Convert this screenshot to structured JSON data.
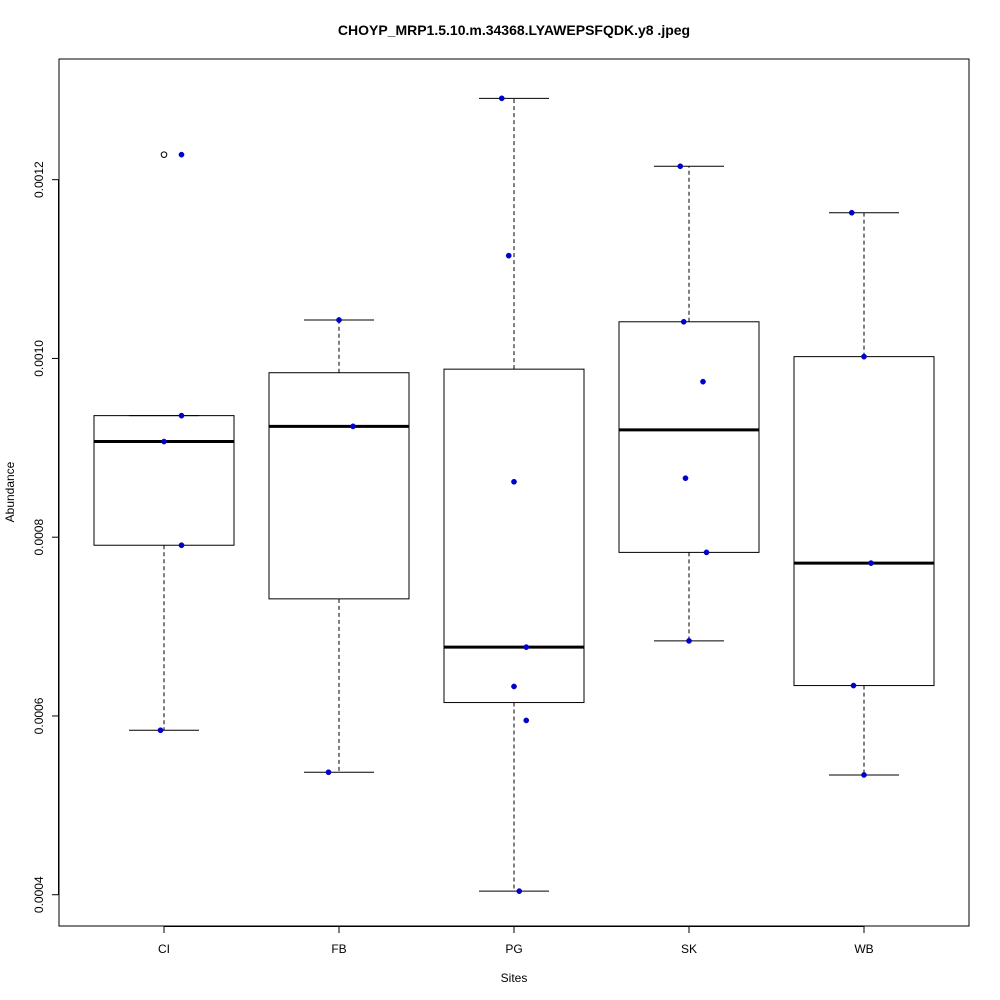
{
  "chart_data": {
    "type": "box",
    "title": "CHOYP_MRP1.5.10.m.34368.LYAWEPSFQDK.y8 .jpeg",
    "xlabel": "Sites",
    "ylabel": "Abundance",
    "ylim": [
      0.000365,
      0.001335
    ],
    "yticks": [
      0.0004,
      0.0006,
      0.0008,
      0.001,
      0.0012
    ],
    "ytick_labels": [
      "0.0004",
      "0.0006",
      "0.0008",
      "0.0010",
      "0.0012"
    ],
    "categories": [
      "CI",
      "FB",
      "PG",
      "SK",
      "WB"
    ],
    "grid": false,
    "legend": "none",
    "point_color": "#0000cc",
    "boxes": [
      {
        "name": "CI",
        "whisker_low": 0.000584,
        "q1": 0.000791,
        "median": 0.000907,
        "q3": 0.000936,
        "whisker_high": 0.000936,
        "outliers": [
          0.001228
        ],
        "points": [
          {
            "dx": 0.1,
            "y": 0.001228
          },
          {
            "dx": 0.1,
            "y": 0.000936
          },
          {
            "dx": 0.0,
            "y": 0.000907
          },
          {
            "dx": 0.1,
            "y": 0.000791
          },
          {
            "dx": -0.02,
            "y": 0.000584
          }
        ]
      },
      {
        "name": "FB",
        "whisker_low": 0.000537,
        "q1": 0.000731,
        "median": 0.000924,
        "q3": 0.000984,
        "whisker_high": 0.001043,
        "outliers": [],
        "points": [
          {
            "dx": 0.0,
            "y": 0.001043
          },
          {
            "dx": 0.08,
            "y": 0.000924
          },
          {
            "dx": -0.06,
            "y": 0.000537
          }
        ]
      },
      {
        "name": "PG",
        "whisker_low": 0.000404,
        "q1": 0.000615,
        "median": 0.000677,
        "q3": 0.000988,
        "whisker_high": 0.001291,
        "outliers": [],
        "points": [
          {
            "dx": -0.07,
            "y": 0.001291
          },
          {
            "dx": -0.03,
            "y": 0.001115
          },
          {
            "dx": 0.0,
            "y": 0.000862
          },
          {
            "dx": 0.07,
            "y": 0.000677
          },
          {
            "dx": 0.0,
            "y": 0.000633
          },
          {
            "dx": 0.07,
            "y": 0.000595
          },
          {
            "dx": 0.03,
            "y": 0.000404
          }
        ]
      },
      {
        "name": "SK",
        "whisker_low": 0.000684,
        "q1": 0.000783,
        "median": 0.00092,
        "q3": 0.001041,
        "whisker_high": 0.001215,
        "outliers": [],
        "points": [
          {
            "dx": -0.05,
            "y": 0.001215
          },
          {
            "dx": -0.03,
            "y": 0.001041
          },
          {
            "dx": 0.08,
            "y": 0.000974
          },
          {
            "dx": -0.02,
            "y": 0.000866
          },
          {
            "dx": 0.1,
            "y": 0.000783
          },
          {
            "dx": 0.0,
            "y": 0.000684
          }
        ]
      },
      {
        "name": "WB",
        "whisker_low": 0.000534,
        "q1": 0.000634,
        "median": 0.000771,
        "q3": 0.001002,
        "whisker_high": 0.001163,
        "outliers": [],
        "points": [
          {
            "dx": -0.07,
            "y": 0.001163
          },
          {
            "dx": 0.0,
            "y": 0.001002
          },
          {
            "dx": 0.04,
            "y": 0.000771
          },
          {
            "dx": -0.06,
            "y": 0.000634
          },
          {
            "dx": 0.0,
            "y": 0.000534
          }
        ]
      }
    ]
  }
}
